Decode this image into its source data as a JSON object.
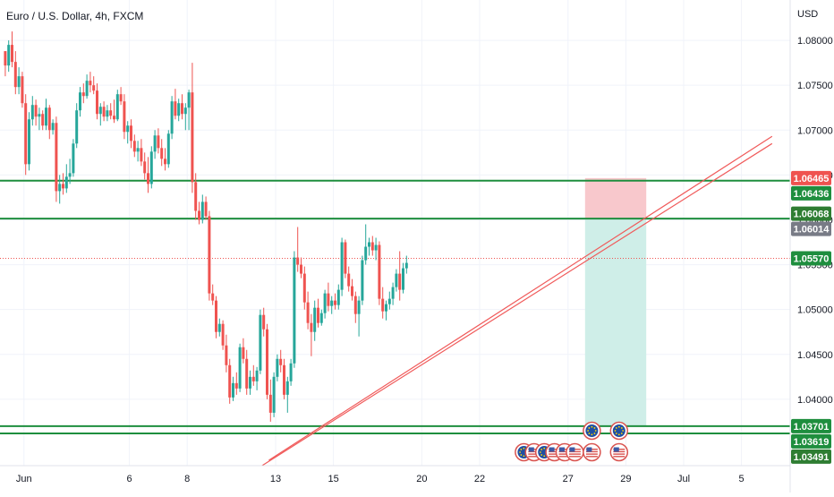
{
  "header": {
    "symbol_title": "Euro / U.S. Dollar, 4h, FXCM"
  },
  "price_axis": {
    "currency": "USD"
  },
  "colors": {
    "up": "#26a69a",
    "down": "#ef5350",
    "level_line": "#1e8e3e",
    "trend_line": "#f05a5a",
    "stop_zone": "#f8c8cc",
    "target_zone": "#cfeee8",
    "price_line": "#ef5350",
    "label_green": "#1e8e3e",
    "label_red": "#ef5350",
    "label_gray": "#787b86",
    "label_dark_green": "#2e7d32"
  },
  "chart_data": {
    "type": "candlestick",
    "title": "Euro / U.S. Dollar, 4h, FXCM",
    "ylabel": "USD",
    "ylim": [
      1.0326,
      1.0845
    ],
    "y_ticks": [
      "1.08000",
      "1.07500",
      "1.07000",
      "1.06500",
      "1.06000",
      "1.05500",
      "1.05000",
      "1.04500",
      "1.04000"
    ],
    "y_tick_values": [
      1.08,
      1.075,
      1.07,
      1.065,
      1.06,
      1.055,
      1.05,
      1.045,
      1.04
    ],
    "x_ticks": [
      "Jun",
      "6",
      "8",
      "13",
      "15",
      "20",
      "22",
      "27",
      "29",
      "Jul",
      "5"
    ],
    "x_tick_bars": [
      6,
      37,
      54,
      80,
      97,
      123,
      140,
      166,
      183,
      200,
      217
    ],
    "bars_visible": 166,
    "candles": [
      [
        1.0788,
        1.0788,
        1.076,
        1.0772
      ],
      [
        1.0772,
        1.08,
        1.0765,
        1.0795
      ],
      [
        1.0795,
        1.081,
        1.077,
        1.0776
      ],
      [
        1.0776,
        1.0788,
        1.074,
        1.0748
      ],
      [
        1.0748,
        1.077,
        1.074,
        1.076
      ],
      [
        1.076,
        1.0765,
        1.0725,
        1.073
      ],
      [
        1.073,
        1.074,
        1.065,
        1.0662
      ],
      [
        1.0662,
        1.072,
        1.0655,
        1.0712
      ],
      [
        1.0712,
        1.0738,
        1.0705,
        1.0728
      ],
      [
        1.0728,
        1.0734,
        1.0705,
        1.0715
      ],
      [
        1.0715,
        1.0725,
        1.07,
        1.0718
      ],
      [
        1.0718,
        1.0722,
        1.07,
        1.0705
      ],
      [
        1.0705,
        1.0735,
        1.07,
        1.0725
      ],
      [
        1.0725,
        1.0728,
        1.069,
        1.07
      ],
      [
        1.07,
        1.0712,
        1.0695,
        1.0708
      ],
      [
        1.0708,
        1.0715,
        1.062,
        1.0632
      ],
      [
        1.0632,
        1.065,
        1.0618,
        1.064
      ],
      [
        1.064,
        1.0652,
        1.0628,
        1.0635
      ],
      [
        1.0635,
        1.0662,
        1.063,
        1.0648
      ],
      [
        1.0648,
        1.0668,
        1.064,
        1.0652
      ],
      [
        1.0652,
        1.069,
        1.0648,
        1.0685
      ],
      [
        1.0685,
        1.073,
        1.068,
        1.0722
      ],
      [
        1.0722,
        1.0748,
        1.0715,
        1.0742
      ],
      [
        1.0742,
        1.0752,
        1.073,
        1.0738
      ],
      [
        1.0738,
        1.0762,
        1.0735,
        1.0755
      ],
      [
        1.0755,
        1.0765,
        1.0742,
        1.075
      ],
      [
        1.075,
        1.076,
        1.074,
        1.0744
      ],
      [
        1.0744,
        1.0752,
        1.0712,
        1.0718
      ],
      [
        1.0718,
        1.073,
        1.0705,
        1.0726
      ],
      [
        1.0726,
        1.0732,
        1.071,
        1.0715
      ],
      [
        1.0715,
        1.0728,
        1.071,
        1.0722
      ],
      [
        1.0722,
        1.073,
        1.0712,
        1.0716
      ],
      [
        1.0716,
        1.0734,
        1.0708,
        1.0712
      ],
      [
        1.0712,
        1.0745,
        1.071,
        1.074
      ],
      [
        1.074,
        1.0748,
        1.0728,
        1.0732
      ],
      [
        1.0732,
        1.074,
        1.069,
        1.0698
      ],
      [
        1.0698,
        1.071,
        1.0685,
        1.0705
      ],
      [
        1.0705,
        1.0712,
        1.068,
        1.0688
      ],
      [
        1.0688,
        1.0695,
        1.067,
        1.0676
      ],
      [
        1.0676,
        1.0688,
        1.0665,
        1.068
      ],
      [
        1.068,
        1.069,
        1.066,
        1.0665
      ],
      [
        1.0665,
        1.0675,
        1.0645,
        1.0652
      ],
      [
        1.0652,
        1.067,
        1.063,
        1.064
      ],
      [
        1.064,
        1.0682,
        1.0635,
        1.0676
      ],
      [
        1.0676,
        1.07,
        1.0668,
        1.0694
      ],
      [
        1.0694,
        1.0702,
        1.0674,
        1.068
      ],
      [
        1.068,
        1.069,
        1.066,
        1.0668
      ],
      [
        1.0668,
        1.068,
        1.0655,
        1.0662
      ],
      [
        1.0662,
        1.07,
        1.0658,
        1.0696
      ],
      [
        1.0696,
        1.0738,
        1.069,
        1.0732
      ],
      [
        1.0732,
        1.0746,
        1.0712,
        1.0716
      ],
      [
        1.0716,
        1.0735,
        1.071,
        1.073
      ],
      [
        1.073,
        1.074,
        1.0712,
        1.0718
      ],
      [
        1.0718,
        1.073,
        1.07,
        1.0725
      ],
      [
        1.0725,
        1.0745,
        1.07,
        1.0742
      ],
      [
        1.0742,
        1.0775,
        1.063,
        1.0642
      ],
      [
        1.0642,
        1.0652,
        1.06,
        1.061
      ],
      [
        1.061,
        1.062,
        1.0595,
        1.06
      ],
      [
        1.06,
        1.0628,
        1.0596,
        1.062
      ],
      [
        1.062,
        1.0626,
        1.06,
        1.0604
      ],
      [
        1.0604,
        1.061,
        1.051,
        1.0518
      ],
      [
        1.0518,
        1.0528,
        1.0505,
        1.051
      ],
      [
        1.051,
        1.0515,
        1.0468,
        1.0475
      ],
      [
        1.0475,
        1.049,
        1.047,
        1.0484
      ],
      [
        1.0484,
        1.0488,
        1.0455,
        1.046
      ],
      [
        1.046,
        1.0472,
        1.043,
        1.0438
      ],
      [
        1.0438,
        1.0445,
        1.0395,
        1.0402
      ],
      [
        1.0402,
        1.0425,
        1.0398,
        1.0418
      ],
      [
        1.0418,
        1.043,
        1.0405,
        1.0412
      ],
      [
        1.0412,
        1.0462,
        1.0408,
        1.0458
      ],
      [
        1.0458,
        1.0468,
        1.044,
        1.0445
      ],
      [
        1.0445,
        1.0455,
        1.0405,
        1.0412
      ],
      [
        1.0412,
        1.0432,
        1.0405,
        1.0425
      ],
      [
        1.0425,
        1.0438,
        1.0415,
        1.042
      ],
      [
        1.042,
        1.0436,
        1.041,
        1.0432
      ],
      [
        1.0432,
        1.05,
        1.0428,
        1.0494
      ],
      [
        1.0494,
        1.0502,
        1.047,
        1.0478
      ],
      [
        1.0478,
        1.0484,
        1.04,
        1.0405
      ],
      [
        1.0405,
        1.0422,
        1.0375,
        1.0385
      ],
      [
        1.0385,
        1.043,
        1.038,
        1.0425
      ],
      [
        1.0425,
        1.045,
        1.042,
        1.0445
      ],
      [
        1.0445,
        1.0455,
        1.043,
        1.0438
      ],
      [
        1.0438,
        1.0445,
        1.04,
        1.0405
      ],
      [
        1.0405,
        1.0425,
        1.0385,
        1.042
      ],
      [
        1.042,
        1.0445,
        1.0415,
        1.044
      ],
      [
        1.044,
        1.0565,
        1.0435,
        1.0558
      ],
      [
        1.0558,
        1.0592,
        1.0542,
        1.055
      ],
      [
        1.055,
        1.0558,
        1.0535,
        1.054
      ],
      [
        1.054,
        1.0548,
        1.05,
        1.0508
      ],
      [
        1.0508,
        1.052,
        1.0478,
        1.0485
      ],
      [
        1.0485,
        1.0495,
        1.0448,
        1.0475
      ],
      [
        1.0475,
        1.051,
        1.0465,
        1.0502
      ],
      [
        1.0502,
        1.0512,
        1.048,
        1.0485
      ],
      [
        1.0485,
        1.05,
        1.0482,
        1.0496
      ],
      [
        1.0496,
        1.0522,
        1.049,
        1.0518
      ],
      [
        1.0518,
        1.053,
        1.0498,
        1.0504
      ],
      [
        1.0504,
        1.0515,
        1.0495,
        1.051
      ],
      [
        1.051,
        1.0518,
        1.05,
        1.0505
      ],
      [
        1.0505,
        1.0528,
        1.05,
        1.0522
      ],
      [
        1.0522,
        1.058,
        1.0515,
        1.0575
      ],
      [
        1.0575,
        1.0578,
        1.0535,
        1.054
      ],
      [
        1.054,
        1.0548,
        1.052,
        1.0526
      ],
      [
        1.0526,
        1.0534,
        1.051,
        1.0515
      ],
      [
        1.0515,
        1.052,
        1.0485,
        1.0495
      ],
      [
        1.0495,
        1.0515,
        1.047,
        1.051
      ],
      [
        1.051,
        1.056,
        1.0505,
        1.0555
      ],
      [
        1.0555,
        1.0595,
        1.055,
        1.057
      ],
      [
        1.057,
        1.058,
        1.056,
        1.0575
      ],
      [
        1.0575,
        1.0582,
        1.056,
        1.0566
      ],
      [
        1.0566,
        1.058,
        1.0555,
        1.0572
      ],
      [
        1.0572,
        1.0576,
        1.0505,
        1.0512
      ],
      [
        1.0512,
        1.0525,
        1.049,
        1.0498
      ],
      [
        1.0498,
        1.051,
        1.0488,
        1.0506
      ],
      [
        1.0506,
        1.052,
        1.05,
        1.0512
      ],
      [
        1.0512,
        1.053,
        1.0505,
        1.0525
      ],
      [
        1.0525,
        1.0545,
        1.052,
        1.054
      ],
      [
        1.054,
        1.0565,
        1.051,
        1.0522
      ],
      [
        1.0522,
        1.0552,
        1.0518,
        1.0546
      ],
      [
        1.0546,
        1.056,
        1.054,
        1.0552
      ]
    ],
    "horizontal_levels": [
      1.06436,
      1.06014,
      1.03701,
      1.03619
    ],
    "trend_lines": [
      {
        "from": [
          78,
          1.0332
        ],
        "to": [
          226,
          1.0693
        ]
      },
      {
        "from": [
          76,
          1.0326
        ],
        "to": [
          226,
          1.0685
        ]
      }
    ],
    "position": {
      "type": "long",
      "from_bar": 171,
      "to_bar": 189,
      "entry": 1.06014,
      "stop": 1.06465,
      "target": 1.03701
    },
    "current_price": 1.0557,
    "price_labels": [
      {
        "text": "1.06465",
        "kind": "red"
      },
      {
        "text": "1.06436",
        "kind": "green"
      },
      {
        "text": "1.06068",
        "kind": "dark"
      },
      {
        "text": "1.06014",
        "kind": "gray"
      },
      {
        "text": "1.05570",
        "kind": "green"
      },
      {
        "text": "1.03701",
        "kind": "green"
      },
      {
        "text": "1.03619",
        "kind": "green"
      },
      {
        "text": "1.03491",
        "kind": "dark"
      }
    ],
    "events": [
      {
        "bar": 173,
        "row": "upper",
        "icon": "eu-flag-icon"
      },
      {
        "bar": 181,
        "row": "upper",
        "icon": "eu-flag-icon"
      },
      {
        "bar": 153,
        "row": "lower",
        "icon": "eu-flag-icon"
      },
      {
        "bar": 156,
        "row": "lower",
        "icon": "us-flag-icon"
      },
      {
        "bar": 159,
        "row": "lower",
        "icon": "eu-flag-icon"
      },
      {
        "bar": 162,
        "row": "lower",
        "icon": "us-flag-icon"
      },
      {
        "bar": 165,
        "row": "lower",
        "icon": "us-flag-icon"
      },
      {
        "bar": 168,
        "row": "lower",
        "icon": "us-flag-icon"
      },
      {
        "bar": 173,
        "row": "lower",
        "icon": "us-flag-icon"
      },
      {
        "bar": 181,
        "row": "lower",
        "icon": "us-flag-icon"
      }
    ]
  }
}
